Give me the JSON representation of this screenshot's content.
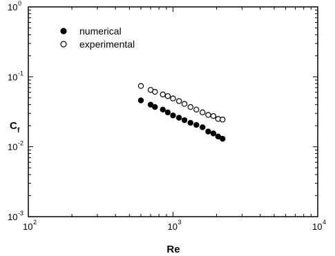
{
  "chart_data": {
    "type": "scatter",
    "title": "",
    "xlabel": "Re",
    "ylabel": {
      "main": "C",
      "subscript": "f"
    },
    "xscale": "log",
    "yscale": "log",
    "xlim": [
      100,
      10000
    ],
    "ylim": [
      0.001,
      1
    ],
    "grid": false,
    "legend_position": "top-left",
    "x_ticks": [
      {
        "value": 100,
        "base": "10",
        "exp": "2"
      },
      {
        "value": 1000,
        "base": "10",
        "exp": "3"
      },
      {
        "value": 10000,
        "base": "10",
        "exp": "4"
      }
    ],
    "y_ticks": [
      {
        "value": 0.001,
        "base": "10",
        "exp": "-3"
      },
      {
        "value": 0.01,
        "base": "10",
        "exp": "-2"
      },
      {
        "value": 0.1,
        "base": "10",
        "exp": "-1"
      },
      {
        "value": 1,
        "base": "10",
        "exp": "0"
      }
    ],
    "series": [
      {
        "name": "numerical",
        "marker": "filled-circle",
        "color": "#000000",
        "x": [
          600,
          700,
          750,
          850,
          920,
          1000,
          1100,
          1200,
          1320,
          1450,
          1600,
          1750,
          1900,
          2050,
          2200
        ],
        "y": [
          0.046,
          0.04,
          0.037,
          0.034,
          0.031,
          0.028,
          0.026,
          0.024,
          0.022,
          0.0205,
          0.019,
          0.0165,
          0.0155,
          0.014,
          0.013
        ]
      },
      {
        "name": "experimental",
        "marker": "open-circle",
        "color": "#000000",
        "x": [
          600,
          700,
          750,
          850,
          920,
          1000,
          1100,
          1200,
          1320,
          1450,
          1600,
          1750,
          1900,
          2050,
          2200
        ],
        "y": [
          0.074,
          0.065,
          0.061,
          0.056,
          0.053,
          0.049,
          0.045,
          0.041,
          0.037,
          0.034,
          0.031,
          0.0285,
          0.0275,
          0.025,
          0.0245
        ]
      }
    ]
  }
}
